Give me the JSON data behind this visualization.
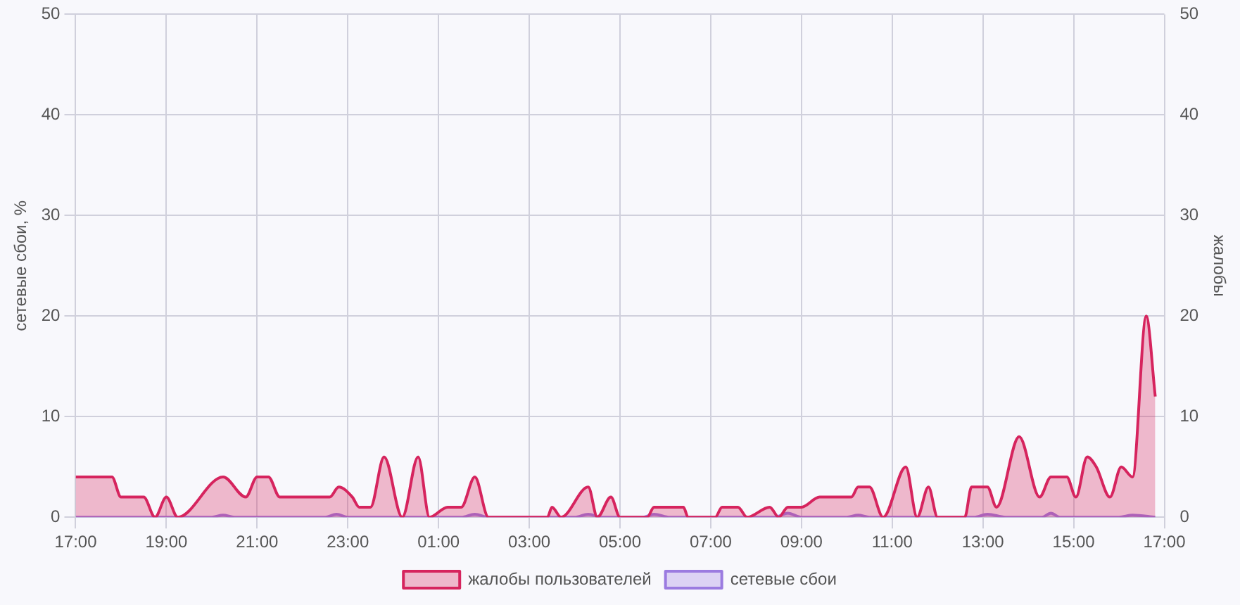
{
  "chart_data": {
    "type": "area",
    "ylabel": "сетевые сбои, %",
    "y2label": "жалобы",
    "xlim": [
      "--01-01T17:00",
      "--01-02T17:00"
    ],
    "xticks": [
      {
        "value": "--01-01T17:00",
        "label": "17:00"
      },
      {
        "value": "--01-01T19:00",
        "label": "19:00"
      },
      {
        "value": "--01-01T21:00",
        "label": "21:00"
      },
      {
        "value": "--01-01T23:00",
        "label": "23:00"
      },
      {
        "value": "--01-02T01:00",
        "label": "01:00"
      },
      {
        "value": "--01-02T03:00",
        "label": "03:00"
      },
      {
        "value": "--01-02T05:00",
        "label": "05:00"
      },
      {
        "value": "--01-02T07:00",
        "label": "07:00"
      },
      {
        "value": "--01-02T09:00",
        "label": "09:00"
      },
      {
        "value": "--01-02T11:00",
        "label": "11:00"
      },
      {
        "value": "--01-02T13:00",
        "label": "13:00"
      },
      {
        "value": "--01-02T15:00",
        "label": "15:00"
      },
      {
        "value": "--01-02T17:00",
        "label": "17:00"
      }
    ],
    "ylim": [
      0,
      50
    ],
    "yticks": [
      0,
      10,
      20,
      30,
      40,
      50
    ],
    "y2lim": [
      0,
      50
    ],
    "y2ticks": [
      0,
      10,
      20,
      30,
      40,
      50
    ],
    "grid": true,
    "legend": "bottom",
    "marker": "none",
    "series": [
      {
        "name": "жалобы пользователей",
        "color": "#d6245e",
        "x": [
          "--01-01T17:00",
          "--01-01T17:48",
          "--01-01T18:00",
          "--01-01T18:30",
          "--01-01T18:45",
          "--01-01T19:00",
          "--01-01T19:15",
          "--01-01T20:15",
          "--01-01T20:45",
          "--01-01T21:00",
          "--01-01T21:15",
          "--01-01T21:30",
          "--01-01T22:36",
          "--01-01T22:48",
          "--01-01T23:06",
          "--01-01T23:15",
          "--01-01T23:30",
          "--01-01T23:48",
          "--01-02T00:12",
          "--01-02T00:33",
          "--01-02T00:48",
          "--01-02T01:12",
          "--01-02T01:30",
          "--01-02T01:48",
          "--01-02T02:06",
          "--01-02T03:24",
          "--01-02T03:30",
          "--01-02T03:42",
          "--01-02T04:18",
          "--01-02T04:30",
          "--01-02T04:48",
          "--01-02T05:00",
          "--01-02T05:36",
          "--01-02T05:45",
          "--01-02T06:24",
          "--01-02T06:30",
          "--01-02T07:06",
          "--01-02T07:15",
          "--01-02T07:36",
          "--01-02T07:48",
          "--01-02T08:18",
          "--01-02T08:30",
          "--01-02T08:42",
          "--01-02T09:00",
          "--01-02T09:24",
          "--01-02T10:06",
          "--01-02T10:15",
          "--01-02T10:30",
          "--01-02T10:48",
          "--01-02T11:18",
          "--01-02T11:33",
          "--01-02T11:48",
          "--01-02T12:00",
          "--01-02T12:36",
          "--01-02T12:45",
          "--01-02T13:06",
          "--01-02T13:18",
          "--01-02T13:48",
          "--01-02T14:15",
          "--01-02T14:30",
          "--01-02T14:51",
          "--01-02T15:03",
          "--01-02T15:18",
          "--01-02T15:30",
          "--01-02T15:48",
          "--01-02T16:03",
          "--01-02T16:18",
          "--01-02T16:36",
          "--01-02T16:48"
        ],
        "values": [
          4,
          4,
          2,
          2,
          0,
          2,
          0,
          4,
          2,
          4,
          4,
          2,
          2,
          3,
          2,
          1,
          1,
          6,
          0,
          6,
          0,
          1,
          1,
          4,
          0,
          0,
          1,
          0,
          3,
          0,
          2,
          0,
          0,
          1,
          1,
          0,
          0,
          1,
          1,
          0,
          1,
          0,
          1,
          1,
          2,
          2,
          3,
          3,
          0,
          5,
          0,
          3,
          0,
          0,
          3,
          3,
          1,
          8,
          2,
          4,
          4,
          2,
          6,
          5,
          2,
          5,
          4,
          20,
          12
        ]
      },
      {
        "name": "сетевые сбои",
        "color": "#9b7be0",
        "x": [
          "--01-01T17:00",
          "--01-01T20:00",
          "--01-01T20:15",
          "--01-01T20:30",
          "--01-01T22:30",
          "--01-01T22:45",
          "--01-01T23:00",
          "--01-02T01:30",
          "--01-02T01:48",
          "--01-02T02:06",
          "--01-02T04:00",
          "--01-02T04:18",
          "--01-02T04:36",
          "--01-02T05:30",
          "--01-02T05:45",
          "--01-02T06:06",
          "--01-02T08:24",
          "--01-02T08:42",
          "--01-02T09:00",
          "--01-02T10:00",
          "--01-02T10:15",
          "--01-02T10:30",
          "--01-02T12:48",
          "--01-02T13:06",
          "--01-02T13:30",
          "--01-02T14:18",
          "--01-02T14:30",
          "--01-02T14:42",
          "--01-02T16:00",
          "--01-02T16:18",
          "--01-02T16:48"
        ],
        "values": [
          0,
          0,
          0.2,
          0,
          0,
          0.3,
          0,
          0,
          0.3,
          0,
          0,
          0.3,
          0,
          0,
          0.3,
          0,
          0,
          0.4,
          0,
          0,
          0.2,
          0,
          0,
          0.3,
          0,
          0,
          0.4,
          0,
          0,
          0.2,
          0
        ]
      }
    ]
  }
}
